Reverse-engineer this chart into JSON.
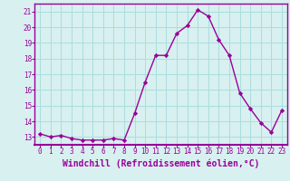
{
  "x": [
    0,
    1,
    2,
    3,
    4,
    5,
    6,
    7,
    8,
    9,
    10,
    11,
    12,
    13,
    14,
    15,
    16,
    17,
    18,
    19,
    20,
    21,
    22,
    23
  ],
  "y": [
    13.2,
    13.0,
    13.1,
    12.9,
    12.8,
    12.8,
    12.8,
    12.9,
    12.8,
    14.5,
    16.5,
    18.2,
    18.2,
    19.6,
    20.1,
    21.1,
    20.7,
    19.2,
    18.2,
    15.8,
    14.8,
    13.9,
    13.3,
    14.7
  ],
  "line_color": "#990099",
  "marker": "D",
  "marker_size": 2.2,
  "bg_color": "#d8f0f0",
  "grid_color": "#aadddd",
  "xlabel": "Windchill (Refroidissement éolien,°C)",
  "xlabel_fontsize": 7,
  "ylabel_ticks": [
    13,
    14,
    15,
    16,
    17,
    18,
    19,
    20,
    21
  ],
  "xlim": [
    -0.5,
    23.5
  ],
  "ylim": [
    12.5,
    21.5
  ],
  "xticks": [
    0,
    1,
    2,
    3,
    4,
    5,
    6,
    7,
    8,
    9,
    10,
    11,
    12,
    13,
    14,
    15,
    16,
    17,
    18,
    19,
    20,
    21,
    22,
    23
  ],
  "tick_fontsize": 5.5,
  "line_width": 1.0,
  "spine_color": "#990099",
  "axis_bottom_color": "#990099"
}
